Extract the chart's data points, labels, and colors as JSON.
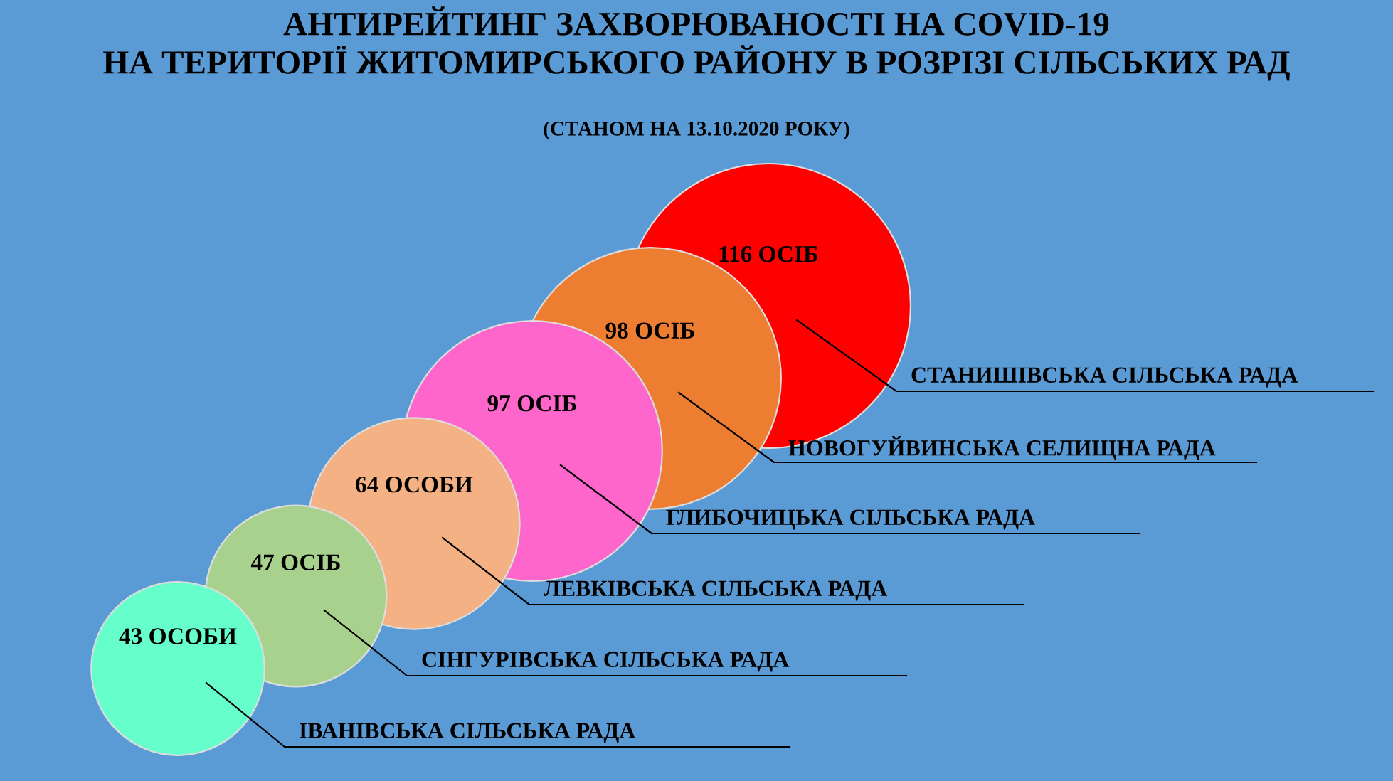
{
  "chart_data": {
    "type": "other",
    "title": "АНТИРЕЙТИНГ ЗАХВОРЮВАНОСТІ НА COVID-19\nНА ТЕРИТОРІЇ ЖИТОМИРСЬКОГО РАЙОНУ В РОЗРІЗІ СІЛЬСЬКИХ РАД",
    "subtitle": "(СТАНОМ НА 13.10.2020 РОКУ)",
    "categories": [
      "ІВАНІВСЬКА СІЛЬСЬКА РАДА",
      "СІНГУРІВСЬКА СІЛЬСЬКА РАДА",
      "ЛЕВКІВСЬКА СІЛЬСЬКА РАДА",
      "ГЛИБОЧИЦЬКА СІЛЬСЬКА РАДА",
      "НОВОГУЙВИНСЬКА СЕЛИЩНА РАДА",
      "СТАНИШІВСЬКА СІЛЬСЬКА РАДА"
    ],
    "values": [
      43,
      47,
      64,
      97,
      98,
      116
    ],
    "value_labels": [
      "43 ОСОБИ",
      "47 ОСІБ",
      "64 ОСОБИ",
      "97 ОСІБ",
      "98 ОСІБ",
      "116 ОСІБ"
    ],
    "colors": [
      "#66ffcc",
      "#a9d18e",
      "#f4b183",
      "#ff66cc",
      "#ed7d31",
      "#ff0000"
    ]
  }
}
